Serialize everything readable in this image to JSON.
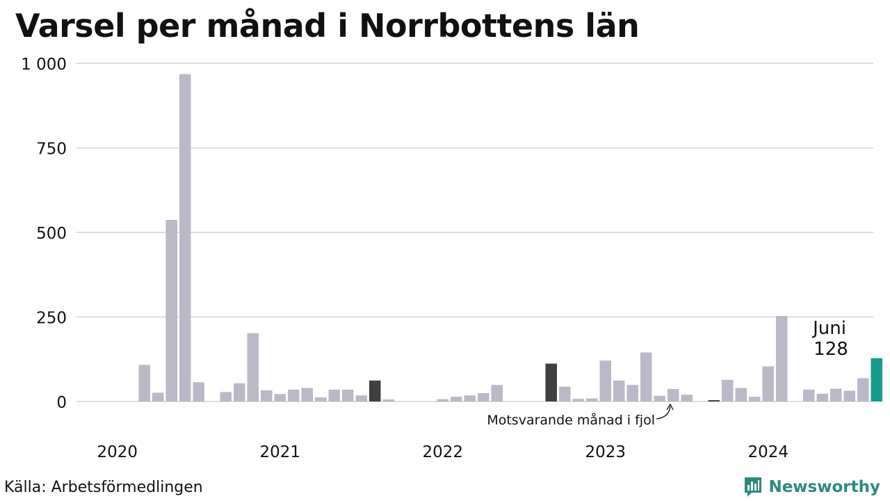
{
  "title": "Varsel per månad i Norrbottens län",
  "source": "Källa: Arbetsförmedlingen",
  "brand": {
    "name": "Newsworthy",
    "icon": "newsworthy-logo-icon",
    "color": "#2b8a7e"
  },
  "colors": {
    "default": "#bbb9c8",
    "previous_year": "#404040",
    "current": "#169b8c",
    "grid": "#dcdce0"
  },
  "chart_data": {
    "type": "bar",
    "title": "Varsel per månad i Norrbottens län",
    "xlabel": "",
    "ylabel": "",
    "ylim": [
      0,
      1000
    ],
    "yticks": [
      {
        "value": 0,
        "label": "0"
      },
      {
        "value": 250,
        "label": "250"
      },
      {
        "value": 500,
        "label": "500"
      },
      {
        "value": 750,
        "label": "750"
      },
      {
        "value": 1000,
        "label": "1 000"
      }
    ],
    "year_labels": [
      "2020",
      "2021",
      "2022",
      "2023",
      "2024"
    ],
    "grid": true,
    "series": [
      {
        "values": [
          0,
          0,
          108,
          26,
          537,
          968,
          57,
          0,
          28,
          54,
          202,
          33,
          22,
          35,
          40,
          12,
          35,
          35,
          18,
          62,
          6,
          0,
          0,
          0,
          7,
          14,
          18,
          25,
          49,
          0,
          0,
          0,
          112,
          44,
          8,
          9,
          121,
          62,
          49,
          145,
          17,
          37,
          20,
          0,
          4,
          64,
          40,
          14,
          104,
          253,
          0,
          35,
          23,
          38,
          32,
          69,
          128
        ]
      }
    ],
    "highlight": {
      "previous_year_index": [
        19,
        32,
        44
      ],
      "current_index": 56
    },
    "current_label": {
      "month": "Juni",
      "value": "128"
    },
    "annotation": "Motsvarande månad i fjol"
  }
}
